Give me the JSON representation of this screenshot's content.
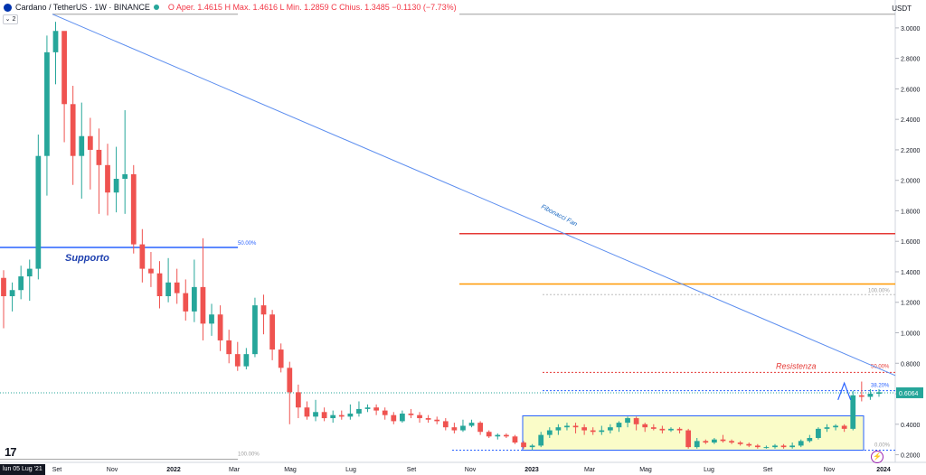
{
  "header": {
    "symbol": "Cardano / TetherUS · 1W · BINANCE",
    "ohlc": "O  Aper. 1.4615  H  Max. 1.4616  L  Min. 1.2859  C  Chius. 1.3485  −0.1130 (−7.73%)",
    "indicator_count": "2",
    "currency": "USDT",
    "logo": "17",
    "crosshair_date": "lun 05 Lug '21"
  },
  "colors": {
    "up": "#26a69a",
    "down": "#ef5350",
    "support": "#2962ff",
    "fan": "#5b8def",
    "resistance_red": "#e53935",
    "resistance_orange": "#ff9800",
    "box_fill": "#fafcc8"
  },
  "chart_data": {
    "type": "candlestick",
    "ylim": [
      0.15,
      3.1
    ],
    "y_ticks": [
      "3.0000",
      "2.8000",
      "2.6000",
      "2.4000",
      "2.2000",
      "2.0000",
      "1.8000",
      "1.6000",
      "1.4000",
      "1.2000",
      "1.0000",
      "0.8000",
      "0.6000",
      "0.4000",
      "0.2000"
    ],
    "x_ticks": [
      "Set",
      "Nov",
      "2022",
      "Mar",
      "Mag",
      "Lug",
      "Set",
      "Nov",
      "2023",
      "Mar",
      "Mag",
      "Lug",
      "Set",
      "Nov",
      "2024"
    ],
    "last_price": "0.6064",
    "candles": [
      [
        1.36,
        1.24,
        1.41,
        1.03
      ],
      [
        1.24,
        1.28,
        1.33,
        1.14
      ],
      [
        1.28,
        1.37,
        1.44,
        1.22
      ],
      [
        1.37,
        1.42,
        1.48,
        1.21
      ],
      [
        1.42,
        2.16,
        2.3,
        1.35
      ],
      [
        2.16,
        2.84,
        2.95,
        1.9
      ],
      [
        2.84,
        2.98,
        3.04,
        2.63
      ],
      [
        2.98,
        2.5,
        2.92,
        2.25
      ],
      [
        2.5,
        2.16,
        2.62,
        1.97
      ],
      [
        2.16,
        2.29,
        2.51,
        1.88
      ],
      [
        2.29,
        2.2,
        2.41,
        1.94
      ],
      [
        2.2,
        2.1,
        2.34,
        1.78
      ],
      [
        2.1,
        1.92,
        2.24,
        1.77
      ],
      [
        1.92,
        2.01,
        2.22,
        1.79
      ],
      [
        2.01,
        2.04,
        2.46,
        1.78
      ],
      [
        2.04,
        1.58,
        2.1,
        1.52
      ],
      [
        1.58,
        1.42,
        1.68,
        1.33
      ],
      [
        1.42,
        1.39,
        1.53,
        1.3
      ],
      [
        1.39,
        1.24,
        1.47,
        1.16
      ],
      [
        1.24,
        1.33,
        1.49,
        1.2
      ],
      [
        1.33,
        1.26,
        1.42,
        1.19
      ],
      [
        1.26,
        1.14,
        1.35,
        1.08
      ],
      [
        1.14,
        1.3,
        1.48,
        1.07
      ],
      [
        1.3,
        1.06,
        1.62,
        0.95
      ],
      [
        1.06,
        1.12,
        1.19,
        0.98
      ],
      [
        1.12,
        0.95,
        1.18,
        0.88
      ],
      [
        0.95,
        0.86,
        1.02,
        0.8
      ],
      [
        0.86,
        0.78,
        0.94,
        0.75
      ],
      [
        0.78,
        0.86,
        0.9,
        0.76
      ],
      [
        0.86,
        1.18,
        1.23,
        0.84
      ],
      [
        1.18,
        1.12,
        1.25,
        0.99
      ],
      [
        1.12,
        0.89,
        1.15,
        0.82
      ],
      [
        0.89,
        0.77,
        0.93,
        0.74
      ],
      [
        0.77,
        0.61,
        0.81,
        0.4
      ],
      [
        0.61,
        0.51,
        0.66,
        0.44
      ],
      [
        0.51,
        0.45,
        0.55,
        0.43
      ],
      [
        0.45,
        0.48,
        0.56,
        0.42
      ],
      [
        0.48,
        0.44,
        0.51,
        0.42
      ],
      [
        0.44,
        0.46,
        0.49,
        0.41
      ],
      [
        0.46,
        0.45,
        0.49,
        0.43
      ],
      [
        0.45,
        0.47,
        0.53,
        0.43
      ],
      [
        0.47,
        0.5,
        0.55,
        0.45
      ],
      [
        0.5,
        0.51,
        0.53,
        0.48
      ],
      [
        0.51,
        0.49,
        0.53,
        0.46
      ],
      [
        0.49,
        0.46,
        0.51,
        0.43
      ],
      [
        0.46,
        0.42,
        0.48,
        0.4
      ],
      [
        0.42,
        0.47,
        0.49,
        0.41
      ],
      [
        0.47,
        0.46,
        0.5,
        0.44
      ],
      [
        0.46,
        0.44,
        0.48,
        0.41
      ],
      [
        0.44,
        0.43,
        0.46,
        0.41
      ],
      [
        0.43,
        0.42,
        0.45,
        0.4
      ],
      [
        0.42,
        0.38,
        0.44,
        0.36
      ],
      [
        0.38,
        0.36,
        0.41,
        0.34
      ],
      [
        0.36,
        0.39,
        0.43,
        0.35
      ],
      [
        0.39,
        0.41,
        0.43,
        0.38
      ],
      [
        0.41,
        0.35,
        0.42,
        0.33
      ],
      [
        0.35,
        0.32,
        0.36,
        0.31
      ],
      [
        0.32,
        0.33,
        0.34,
        0.3
      ],
      [
        0.33,
        0.32,
        0.34,
        0.31
      ],
      [
        0.32,
        0.28,
        0.33,
        0.27
      ],
      [
        0.28,
        0.25,
        0.29,
        0.24
      ],
      [
        0.25,
        0.26,
        0.27,
        0.23
      ],
      [
        0.26,
        0.33,
        0.35,
        0.25
      ],
      [
        0.33,
        0.36,
        0.38,
        0.31
      ],
      [
        0.36,
        0.38,
        0.4,
        0.33
      ],
      [
        0.38,
        0.39,
        0.41,
        0.36
      ],
      [
        0.39,
        0.38,
        0.41,
        0.34
      ],
      [
        0.38,
        0.36,
        0.4,
        0.33
      ],
      [
        0.36,
        0.35,
        0.38,
        0.33
      ],
      [
        0.35,
        0.36,
        0.39,
        0.33
      ],
      [
        0.36,
        0.38,
        0.4,
        0.34
      ],
      [
        0.38,
        0.41,
        0.42,
        0.35
      ],
      [
        0.41,
        0.44,
        0.45,
        0.38
      ],
      [
        0.44,
        0.4,
        0.45,
        0.36
      ],
      [
        0.4,
        0.38,
        0.41,
        0.35
      ],
      [
        0.38,
        0.37,
        0.4,
        0.36
      ],
      [
        0.37,
        0.36,
        0.39,
        0.34
      ],
      [
        0.36,
        0.37,
        0.38,
        0.35
      ],
      [
        0.37,
        0.36,
        0.38,
        0.34
      ],
      [
        0.36,
        0.25,
        0.37,
        0.24
      ],
      [
        0.25,
        0.29,
        0.31,
        0.24
      ],
      [
        0.29,
        0.28,
        0.3,
        0.27
      ],
      [
        0.28,
        0.3,
        0.31,
        0.27
      ],
      [
        0.3,
        0.29,
        0.33,
        0.28
      ],
      [
        0.29,
        0.28,
        0.3,
        0.27
      ],
      [
        0.28,
        0.27,
        0.29,
        0.26
      ],
      [
        0.27,
        0.26,
        0.28,
        0.25
      ],
      [
        0.26,
        0.25,
        0.27,
        0.24
      ],
      [
        0.25,
        0.25,
        0.26,
        0.24
      ],
      [
        0.25,
        0.26,
        0.27,
        0.24
      ],
      [
        0.26,
        0.25,
        0.27,
        0.24
      ],
      [
        0.25,
        0.26,
        0.28,
        0.24
      ],
      [
        0.26,
        0.29,
        0.3,
        0.25
      ],
      [
        0.29,
        0.31,
        0.33,
        0.28
      ],
      [
        0.31,
        0.37,
        0.38,
        0.3
      ],
      [
        0.37,
        0.38,
        0.4,
        0.35
      ],
      [
        0.38,
        0.39,
        0.4,
        0.36
      ],
      [
        0.39,
        0.37,
        0.4,
        0.35
      ],
      [
        0.37,
        0.59,
        0.62,
        0.36
      ],
      [
        0.59,
        0.58,
        0.68,
        0.55
      ],
      [
        0.58,
        0.6,
        0.63,
        0.56
      ],
      [
        0.6,
        0.61,
        0.63,
        0.58
      ]
    ],
    "annotations": {
      "support_label": "Supporto",
      "support_level": 1.56,
      "resistance_label": "Resistenza",
      "fan_label": "Fibonacci Fan",
      "fib_top_left": "50.00%",
      "fib_bottom_left": "100.00%",
      "fib_right_100": "100.00%",
      "fib_right_50": "50.00%",
      "fib_right_382": "38.20%",
      "fib_right_0": "0.00%",
      "red_level": 1.65,
      "orange_level": 1.32
    }
  }
}
